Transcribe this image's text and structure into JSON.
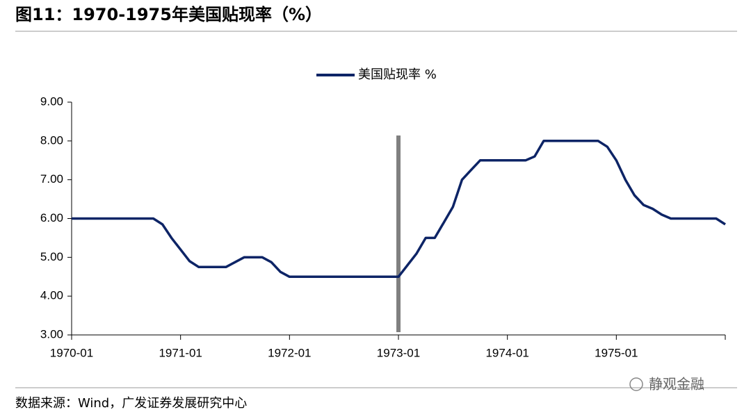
{
  "header": {
    "title": "图11：1970-1975年美国贴现率（%）"
  },
  "chart_data": {
    "type": "line",
    "categories": [
      "1970-01",
      null,
      null,
      null,
      null,
      null,
      null,
      null,
      null,
      null,
      null,
      null,
      "1971-01",
      null,
      null,
      null,
      null,
      null,
      null,
      null,
      null,
      null,
      null,
      null,
      "1972-01",
      null,
      null,
      null,
      null,
      null,
      null,
      null,
      null,
      null,
      null,
      null,
      "1973-01",
      null,
      null,
      null,
      null,
      null,
      null,
      null,
      null,
      null,
      null,
      null,
      "1974-01",
      null,
      null,
      null,
      null,
      null,
      null,
      null,
      null,
      null,
      null,
      null,
      "1975-01",
      null,
      null,
      null,
      null,
      null,
      null,
      null,
      null,
      null,
      null,
      null,
      null
    ],
    "series": [
      {
        "name": "美国贴现率 %",
        "color": "#0d2466",
        "values": [
          6,
          6,
          6,
          6,
          6,
          6,
          6,
          6,
          6,
          6,
          5.85,
          5.5,
          5.2,
          4.9,
          4.75,
          4.75,
          4.75,
          4.75,
          4.875,
          5,
          5,
          5,
          4.875,
          4.625,
          4.5,
          4.5,
          4.5,
          4.5,
          4.5,
          4.5,
          4.5,
          4.5,
          4.5,
          4.5,
          4.5,
          4.5,
          4.5,
          4.8,
          5.1,
          5.5,
          5.5,
          5.9,
          6.3,
          7.0,
          7.25,
          7.5,
          7.5,
          7.5,
          7.5,
          7.5,
          7.5,
          7.6,
          8,
          8,
          8,
          8,
          8,
          8,
          8,
          7.85,
          7.5,
          7.0,
          6.6,
          6.35,
          6.25,
          6.1,
          6,
          6,
          6,
          6,
          6,
          6,
          5.85
        ]
      }
    ],
    "ylim": [
      3,
      9
    ],
    "yticks": [
      {
        "value": 3,
        "label": "3.00"
      },
      {
        "value": 4,
        "label": "4.00"
      },
      {
        "value": 5,
        "label": "5.00"
      },
      {
        "value": 6,
        "label": "6.00"
      },
      {
        "value": 7,
        "label": "7.00"
      },
      {
        "value": 8,
        "label": "8.00"
      },
      {
        "value": 9,
        "label": "9.00"
      }
    ],
    "legend": "top"
  },
  "footer": {
    "source": "数据来源：Wind，广发证券发展研究中心",
    "watermark": "静观金融"
  }
}
